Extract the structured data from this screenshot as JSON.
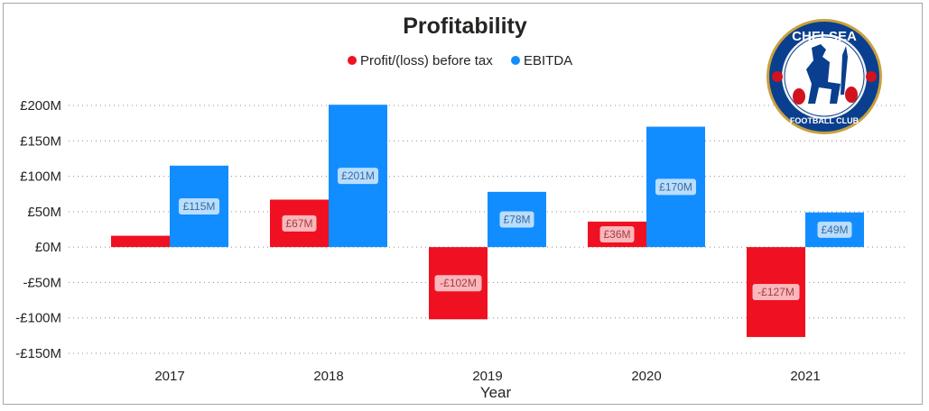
{
  "chart_data": {
    "type": "bar",
    "title": "Profitability",
    "xlabel": "Year",
    "ylabel": "",
    "categories": [
      "2017",
      "2018",
      "2019",
      "2020",
      "2021"
    ],
    "series": [
      {
        "name": "Profit/(loss) before tax",
        "color": "#ef1021",
        "values": [
          16,
          67,
          -102,
          36,
          -127
        ],
        "labels": [
          "",
          "£67M",
          "-£102M",
          "£36M",
          "-£127M"
        ]
      },
      {
        "name": "EBITDA",
        "color": "#128dff",
        "values": [
          115,
          201,
          78,
          170,
          49
        ],
        "labels": [
          "£115M",
          "£201M",
          "£78M",
          "£170M",
          "£49M"
        ]
      }
    ],
    "ylim": [
      -150,
      200
    ],
    "yticks": [
      200,
      150,
      100,
      50,
      0,
      -50,
      -100,
      -150
    ],
    "ytick_labels": [
      "£200M",
      "£150M",
      "£100M",
      "£50M",
      "£0M",
      "-£50M",
      "-£100M",
      "-£150M"
    ],
    "grid": true,
    "legend_position": "top-center"
  },
  "logo": {
    "top_text": "CHELSEA",
    "bottom_text": "FOOTBALL CLUB"
  }
}
